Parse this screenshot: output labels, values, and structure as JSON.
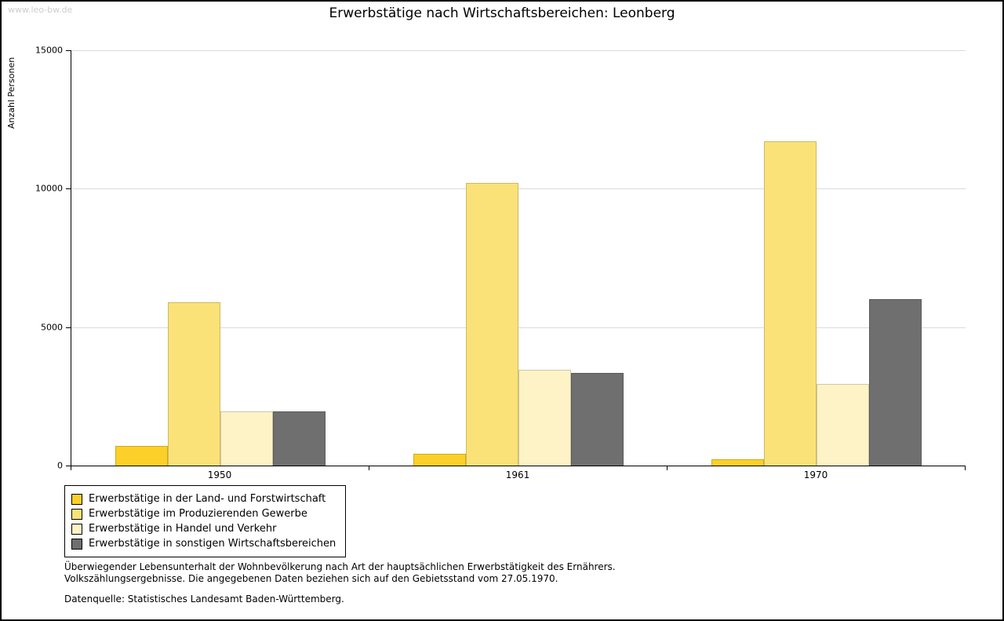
{
  "watermark": "www.leo-bw.de",
  "title": "Erwerbstätige nach Wirtschaftsbereichen: Leonberg",
  "chart_data": {
    "type": "bar",
    "title": "Erwerbstätige nach Wirtschaftsbereichen: Leonberg",
    "xlabel": "",
    "ylabel": "Anzahl Personen",
    "ylim": [
      0,
      15000
    ],
    "yticks": [
      0,
      5000,
      10000,
      15000
    ],
    "grid": true,
    "legend_position": "bottom-left",
    "categories": [
      "1950",
      "1961",
      "1970"
    ],
    "series": [
      {
        "name": "Erwerbstätige in der Land- und Forstwirtschaft",
        "color": "#FCD028",
        "values": [
          700,
          420,
          230
        ]
      },
      {
        "name": "Erwerbstätige im Produzierenden Gewerbe",
        "color": "#FAE279",
        "values": [
          5900,
          10200,
          11700
        ]
      },
      {
        "name": "Erwerbstätige in Handel und Verkehr",
        "color": "#FDF3C6",
        "values": [
          1950,
          3450,
          2950
        ]
      },
      {
        "name": "Erwerbstätige in sonstigen Wirtschaftsbereichen",
        "color": "#6F6F6F",
        "values": [
          1950,
          3350,
          6000
        ]
      }
    ]
  },
  "footnotes": {
    "line1": "Überwiegender Lebensunterhalt der Wohnbevölkerung nach Art der hauptsächlichen Erwerbstätigkeit des Ernährers.",
    "line2": "Volkszählungsergebnisse. Die angegebenen Daten beziehen sich auf den Gebietsstand vom 27.05.1970.",
    "source": "Datenquelle: Statistisches Landesamt Baden-Württemberg."
  }
}
